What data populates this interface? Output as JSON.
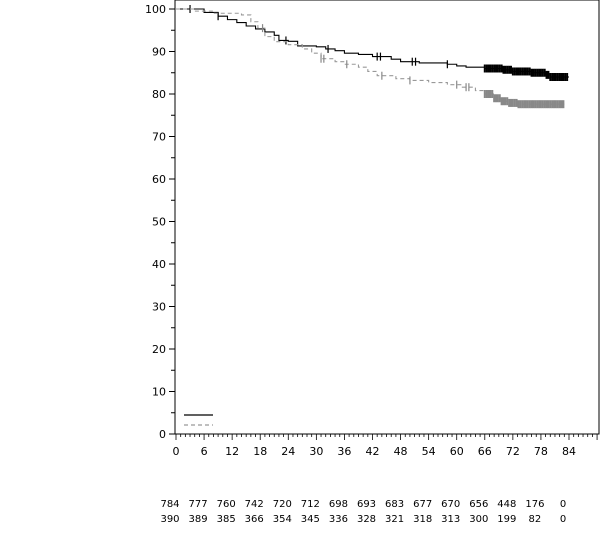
{
  "chart_data": {
    "type": "line",
    "subtype": "kaplan-meier",
    "title": "",
    "xlabel": "",
    "ylabel": "",
    "xlim": [
      0,
      90
    ],
    "ylim": [
      0,
      100
    ],
    "x_ticks": [
      0,
      6,
      12,
      18,
      24,
      30,
      36,
      42,
      48,
      54,
      60,
      66,
      72,
      78,
      84
    ],
    "y_ticks": [
      0,
      10,
      20,
      30,
      40,
      50,
      60,
      70,
      80,
      90,
      100
    ],
    "grid": false,
    "legend": {
      "placement": "bottom-left",
      "entries": [
        "",
        ""
      ]
    },
    "series": [
      {
        "name": "solid",
        "color": "#000000",
        "style": "solid",
        "steps": [
          [
            0,
            100
          ],
          [
            3,
            100
          ],
          [
            6,
            99.2
          ],
          [
            9,
            98.3
          ],
          [
            11,
            97.5
          ],
          [
            13,
            96.8
          ],
          [
            15,
            96
          ],
          [
            17,
            95.3
          ],
          [
            19,
            94.6
          ],
          [
            21,
            93.8
          ],
          [
            22,
            92.6
          ],
          [
            24,
            92.4
          ],
          [
            26,
            91.3
          ],
          [
            30,
            91.1
          ],
          [
            32,
            90.6
          ],
          [
            34,
            90.2
          ],
          [
            36,
            89.6
          ],
          [
            39,
            89.3
          ],
          [
            42,
            88.8
          ],
          [
            46,
            88.2
          ],
          [
            48,
            87.6
          ],
          [
            52,
            87.3
          ],
          [
            58,
            87
          ],
          [
            60,
            86.6
          ],
          [
            62,
            86.3
          ],
          [
            66,
            86
          ],
          [
            70,
            85.7
          ],
          [
            72,
            85.3
          ],
          [
            76,
            85
          ],
          [
            79,
            84.5
          ],
          [
            80,
            84
          ],
          [
            84,
            84
          ]
        ],
        "censor_times": [
          3,
          9,
          23.5,
          32.5,
          43,
          43.7,
          50.5,
          51.2,
          58
        ],
        "censor_dense_range": [
          66,
          84
        ]
      },
      {
        "name": "dashed",
        "color": "#888888",
        "style": "dashed",
        "steps": [
          [
            0,
            100
          ],
          [
            4,
            99.5
          ],
          [
            8,
            99
          ],
          [
            14,
            98.6
          ],
          [
            16,
            97
          ],
          [
            17.5,
            95.5
          ],
          [
            19,
            93.5
          ],
          [
            21,
            92.3
          ],
          [
            24,
            91.6
          ],
          [
            27,
            90.6
          ],
          [
            29,
            89.6
          ],
          [
            31,
            88.3
          ],
          [
            34,
            87.6
          ],
          [
            36,
            87
          ],
          [
            39,
            86.3
          ],
          [
            41,
            85.3
          ],
          [
            43,
            84.3
          ],
          [
            47,
            83.6
          ],
          [
            50,
            83.2
          ],
          [
            54,
            82.7
          ],
          [
            58,
            82.2
          ],
          [
            61,
            81.6
          ],
          [
            64,
            80.8
          ],
          [
            66,
            80
          ],
          [
            68,
            79
          ],
          [
            69.5,
            78.3
          ],
          [
            71,
            77.9
          ],
          [
            73,
            77.6
          ],
          [
            83,
            77.6
          ]
        ],
        "censor_times": [
          18.5,
          31,
          31.6,
          36.5,
          44,
          50,
          60,
          62,
          62.6
        ],
        "censor_dense_range": [
          66,
          83
        ]
      }
    ],
    "number_at_risk": {
      "times": [
        0,
        6,
        12,
        18,
        24,
        30,
        36,
        42,
        48,
        54,
        60,
        66,
        72,
        78,
        84
      ],
      "rows": [
        [
          "784",
          "777",
          "760",
          "742",
          "720",
          "712",
          "698",
          "693",
          "683",
          "677",
          "670",
          "656",
          "448",
          "176",
          "0"
        ],
        [
          "390",
          "389",
          "385",
          "366",
          "354",
          "345",
          "336",
          "328",
          "321",
          "318",
          "313",
          "300",
          "199",
          "82",
          "0"
        ]
      ]
    }
  }
}
